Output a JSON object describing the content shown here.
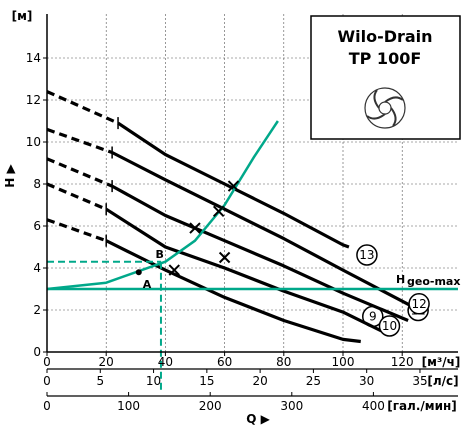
{
  "chart_data": {
    "type": "line",
    "title": "Wilo-Drain",
    "subtitle": "TP 100F",
    "ylabel": "H",
    "y_unit": "[м]",
    "xlabel": "Q",
    "x_units": [
      "[м³/ч]",
      "[л/с]",
      "[гал./мин]"
    ],
    "xlim": [
      0,
      126
    ],
    "ylim": [
      0,
      15
    ],
    "y_ticks": [
      "0",
      "2",
      "4",
      "6",
      "8",
      "10",
      "12",
      "14"
    ],
    "x_ticks_m3h": [
      "0",
      "20",
      "40",
      "60",
      "80",
      "100",
      "120"
    ],
    "x_ticks_ls": [
      "0",
      "5",
      "10",
      "15",
      "20",
      "25",
      "30",
      "35"
    ],
    "x_ticks_gpm": [
      "0",
      "100",
      "200",
      "300",
      "400"
    ],
    "grid": true,
    "series": [
      {
        "name": "9",
        "dashed_x": [
          0,
          20
        ],
        "x": [
          20,
          40,
          60,
          80,
          100,
          106
        ],
        "y": [
          5.3,
          3.9,
          2.6,
          1.5,
          0.6,
          0.5
        ]
      },
      {
        "name": "10",
        "dashed_x": [
          0,
          20
        ],
        "x": [
          20,
          40,
          60,
          80,
          100,
          113
        ],
        "y": [
          6.8,
          5.0,
          4.0,
          2.9,
          1.9,
          1.0
        ]
      },
      {
        "name": "11",
        "dashed_x": [
          0,
          22
        ],
        "x": [
          22,
          40,
          60,
          80,
          100,
          122
        ],
        "y": [
          7.9,
          6.5,
          5.3,
          4.1,
          2.8,
          1.5
        ]
      },
      {
        "name": "12",
        "dashed_x": [
          0,
          22
        ],
        "x": [
          22,
          40,
          60,
          80,
          100,
          123
        ],
        "y": [
          9.5,
          8.2,
          6.8,
          5.4,
          3.9,
          2.2
        ]
      },
      {
        "name": "13",
        "dashed_x": [
          0,
          24
        ],
        "x": [
          24,
          40,
          60,
          80,
          100,
          102
        ],
        "y": [
          10.9,
          9.4,
          8.0,
          6.6,
          5.1,
          5.0
        ]
      }
    ],
    "series_dashed_start_y": [
      6.3,
      8.0,
      9.2,
      10.6,
      12.4
    ],
    "system_curve": {
      "x": [
        0,
        20,
        40,
        50,
        60,
        70,
        78
      ],
      "y": [
        3.0,
        3.3,
        4.3,
        5.3,
        7.0,
        9.3,
        11.0
      ]
    },
    "h_geo_max": {
      "label": "H",
      "sub": "geo-max",
      "y": 3.0
    },
    "operating_point": {
      "x": 38.5,
      "y": 4.3
    },
    "point_A": {
      "label": "A",
      "x": 31,
      "y": 3.8
    },
    "point_B": {
      "label": "B",
      "x": 38,
      "y": 5.0
    },
    "x_marks": [
      {
        "x": 43,
        "y": 3.9
      },
      {
        "x": 60,
        "y": 4.5
      },
      {
        "x": 50,
        "y": 5.9
      },
      {
        "x": 58,
        "y": 6.7
      },
      {
        "x": 63,
        "y": 7.9
      }
    ],
    "colors": {
      "pump_curves": "#000000",
      "system_curve": "#00a88a",
      "hgeo_line": "#00a88a",
      "grid": "#555555"
    },
    "legend": "circled curve numbers at curve ends"
  },
  "logo": {
    "icon": "impeller-icon"
  }
}
